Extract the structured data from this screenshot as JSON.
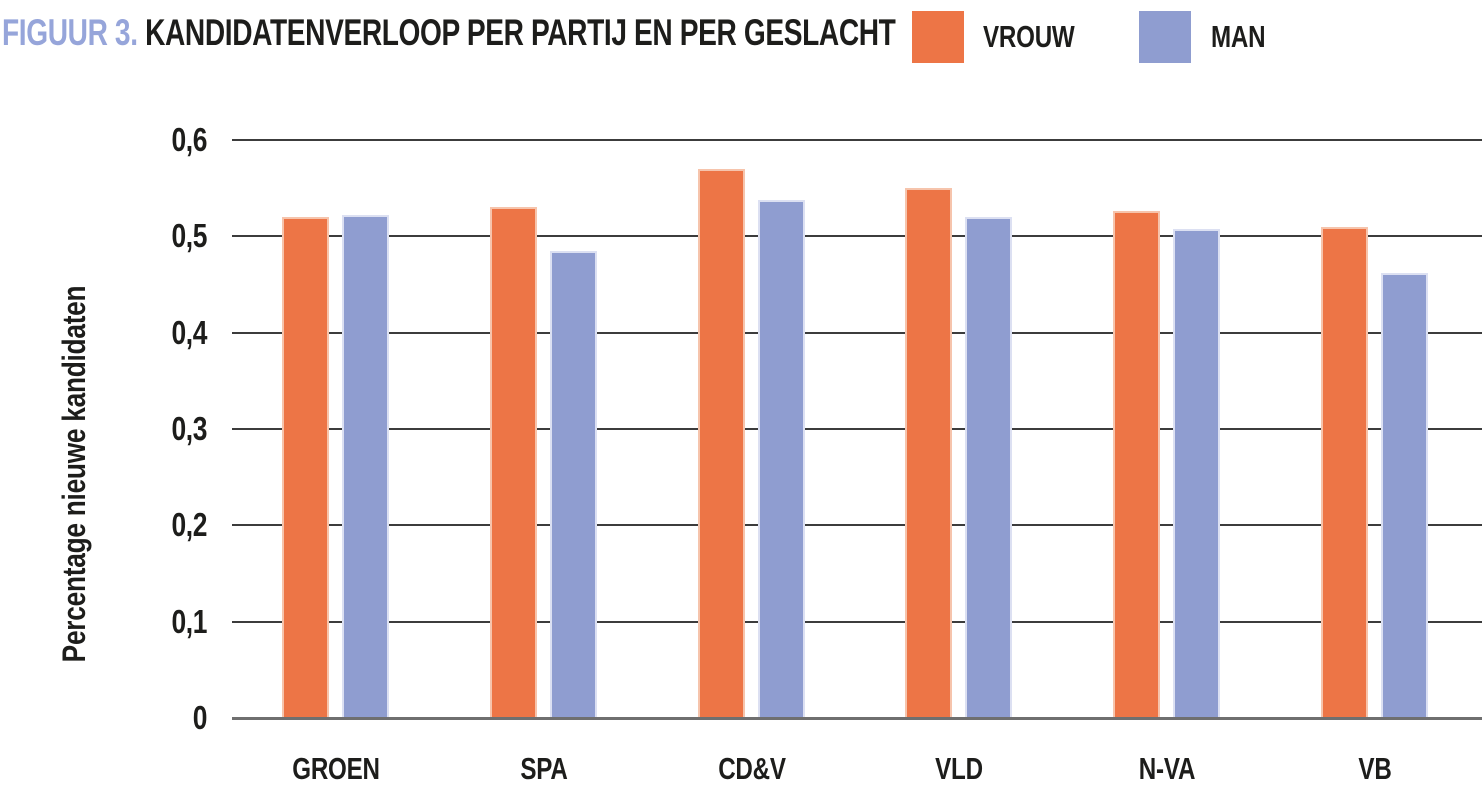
{
  "header": {
    "title_prefix": "FIGUUR 3.",
    "title_text": " KANDIDATENVERLOOP PER PARTIJ EN PER GESLACHT",
    "title_prefix_color": "#96a5da",
    "title_text_color": "#1d1d1b"
  },
  "chart_data": {
    "type": "bar",
    "title": "FIGUUR 3. KANDIDATENVERLOOP PER PARTIJ EN PER GESLACHT",
    "categories": [
      "GROEN",
      "SPA",
      "CD&V",
      "VLD",
      "N-VA",
      "VB"
    ],
    "series": [
      {
        "name": "VROUW",
        "color": "#ed7546",
        "border_color": "#f6c4ac",
        "values": [
          0.52,
          0.53,
          0.57,
          0.55,
          0.526,
          0.51
        ]
      },
      {
        "name": "MAN",
        "color": "#8f9dd0",
        "border_color": "#dce0f2",
        "values": [
          0.522,
          0.485,
          0.538,
          0.52,
          0.508,
          0.462
        ]
      }
    ],
    "xlabel": "",
    "ylabel": "Percentage nieuwe kandidaten",
    "ylim": [
      0,
      0.6
    ],
    "yticks": [
      0,
      0.1,
      0.2,
      0.3,
      0.4,
      0.5,
      0.6
    ],
    "ytick_labels": [
      "0",
      "0,1",
      "0,2",
      "0,3",
      "0,4",
      "0,5",
      "0,6"
    ],
    "grid": true,
    "legend_position": "top-right",
    "grid_color": "#3c3c3c",
    "baseline_color": "#6f6f6f"
  }
}
